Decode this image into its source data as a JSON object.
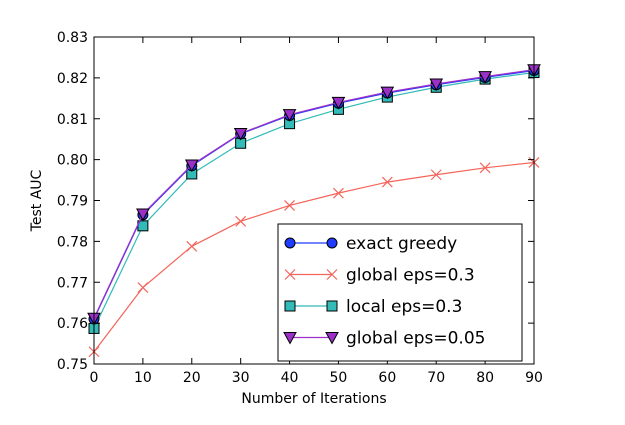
{
  "chart_data": {
    "type": "line",
    "title": "",
    "xlabel": "Number of Iterations",
    "ylabel": "Test AUC",
    "xlim": [
      0,
      90
    ],
    "ylim": [
      0.75,
      0.83
    ],
    "x": [
      0,
      10,
      20,
      30,
      40,
      50,
      60,
      70,
      80,
      90
    ],
    "xticks": [
      "0",
      "10",
      "20",
      "30",
      "40",
      "50",
      "60",
      "70",
      "80",
      "90"
    ],
    "yticks": [
      "0.75",
      "0.76",
      "0.77",
      "0.78",
      "0.79",
      "0.80",
      "0.81",
      "0.82",
      "0.83"
    ],
    "grid": false,
    "legend_position": "lower-right",
    "series": [
      {
        "name": "exact greedy",
        "color": "#1f3cff",
        "marker": "circle",
        "values": [
          0.761,
          0.7865,
          0.7985,
          0.8063,
          0.8108,
          0.8138,
          0.8163,
          0.8183,
          0.8201,
          0.8218
        ]
      },
      {
        "name": "global eps=0.3",
        "color": "#f4645a",
        "marker": "x",
        "values": [
          0.753,
          0.7687,
          0.7788,
          0.7849,
          0.7888,
          0.7918,
          0.7945,
          0.7963,
          0.798,
          0.7993
        ]
      },
      {
        "name": "local eps=0.3",
        "color": "#33bbb8",
        "marker": "square",
        "values": [
          0.7587,
          0.7838,
          0.7965,
          0.804,
          0.8088,
          0.8123,
          0.8153,
          0.8177,
          0.8197,
          0.8213
        ]
      },
      {
        "name": "global eps=0.05",
        "color": "#9b30c8",
        "marker": "triangle-down",
        "values": [
          0.7612,
          0.7867,
          0.7987,
          0.8064,
          0.811,
          0.814,
          0.8165,
          0.8185,
          0.8203,
          0.822
        ]
      }
    ]
  }
}
